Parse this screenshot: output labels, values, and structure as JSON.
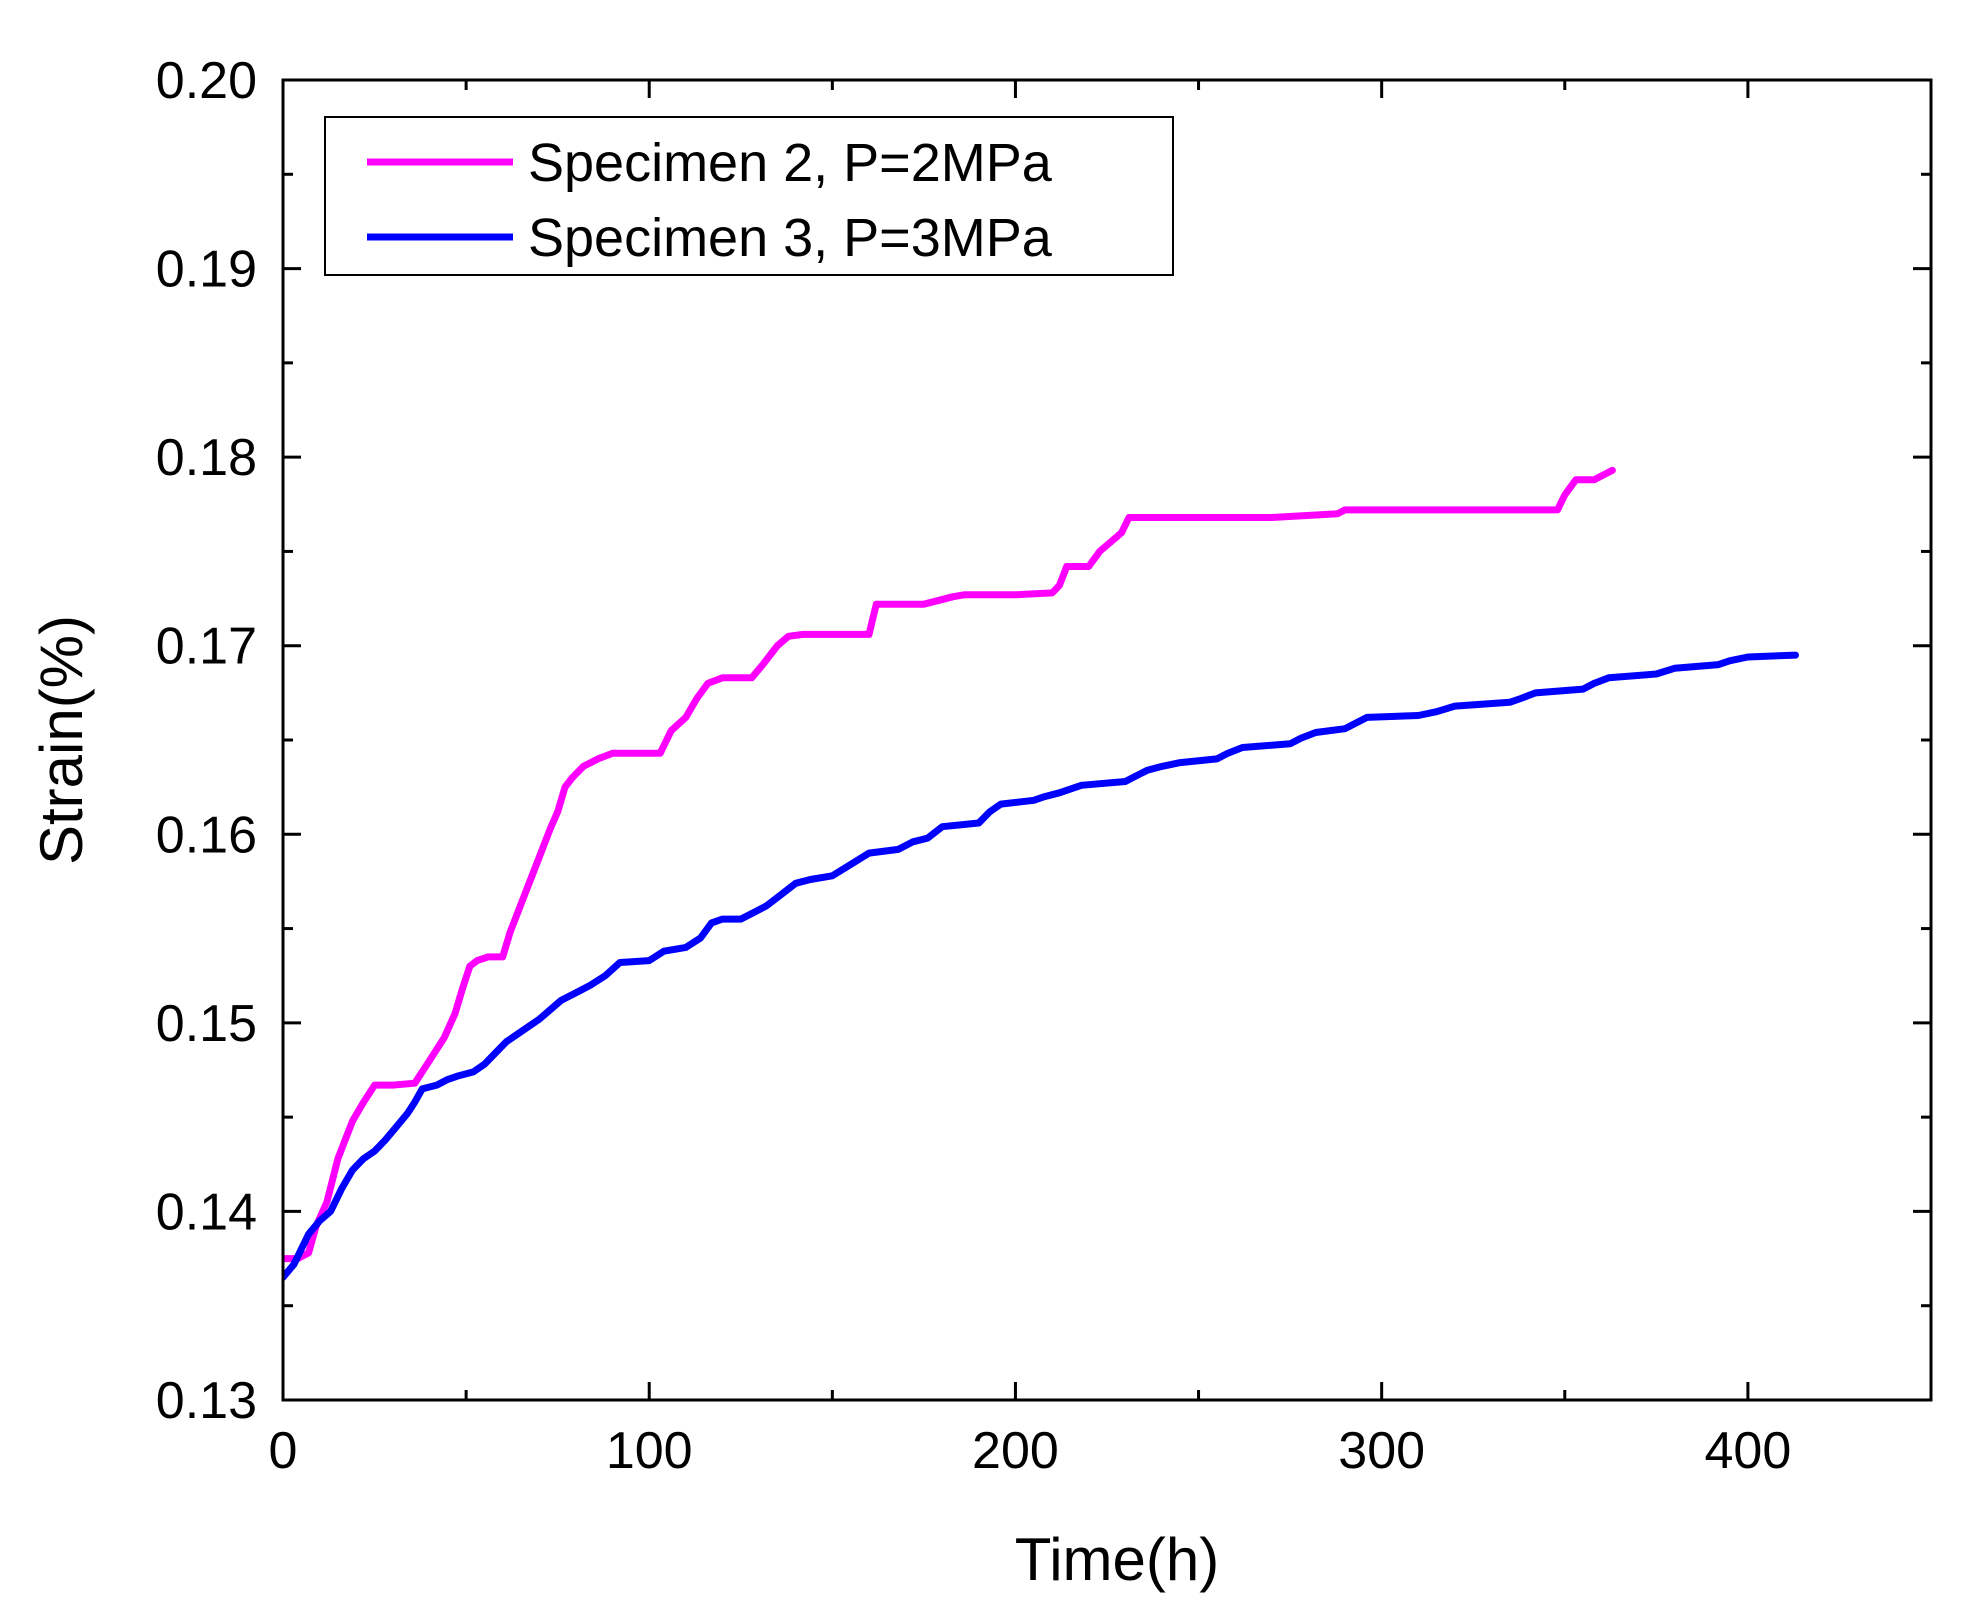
{
  "chart_data": {
    "type": "line",
    "title": "",
    "xlabel": "Time(h)",
    "ylabel": "Strain(%)",
    "xlim": [
      0,
      450
    ],
    "ylim": [
      0.13,
      0.2
    ],
    "x_ticks": [
      0,
      100,
      200,
      300,
      400
    ],
    "x_tick_labels": [
      "0",
      "100",
      "200",
      "300",
      "400"
    ],
    "x_minor_ticks": [
      50,
      150,
      250,
      350
    ],
    "y_ticks": [
      0.13,
      0.14,
      0.15,
      0.16,
      0.17,
      0.18,
      0.19,
      0.2
    ],
    "y_tick_labels": [
      "0.13",
      "0.14",
      "0.15",
      "0.16",
      "0.17",
      "0.18",
      "0.19",
      "0.20"
    ],
    "y_minor_ticks": [
      0.135,
      0.145,
      0.155,
      0.165,
      0.175,
      0.185,
      0.195
    ],
    "grid": false,
    "legend_position": "top-left",
    "series": [
      {
        "name": "Specimen 2, P=2MPa",
        "color": "#ff00ff",
        "x": [
          0,
          4,
          7,
          9,
          12,
          15,
          19,
          22,
          25,
          30,
          36,
          40,
          44,
          47,
          49,
          51,
          53,
          56,
          60,
          62,
          65,
          68,
          71,
          73,
          75,
          77,
          79,
          82,
          86,
          90,
          95,
          103,
          106,
          110,
          113,
          116,
          120,
          128,
          131,
          135,
          138,
          142,
          150,
          160,
          162,
          164,
          167,
          175,
          183,
          186,
          190,
          200,
          210,
          212,
          214,
          216,
          220,
          223,
          226,
          229,
          231,
          235,
          250,
          270,
          288,
          290,
          292,
          310,
          330,
          348,
          350,
          353,
          358,
          360,
          363
        ],
        "y": [
          0.1375,
          0.1375,
          0.1378,
          0.1392,
          0.1405,
          0.1428,
          0.1448,
          0.1458,
          0.1467,
          0.1467,
          0.1468,
          0.148,
          0.1492,
          0.1505,
          0.1518,
          0.153,
          0.1533,
          0.1535,
          0.1535,
          0.1548,
          0.1563,
          0.1578,
          0.1593,
          0.1603,
          0.1612,
          0.1625,
          0.163,
          0.1636,
          0.164,
          0.1643,
          0.1643,
          0.1643,
          0.1655,
          0.1662,
          0.1672,
          0.168,
          0.1683,
          0.1683,
          0.169,
          0.17,
          0.1705,
          0.1706,
          0.1706,
          0.1706,
          0.1722,
          0.1722,
          0.1722,
          0.1722,
          0.1726,
          0.1727,
          0.1727,
          0.1727,
          0.1728,
          0.1732,
          0.1742,
          0.1742,
          0.1742,
          0.175,
          0.1755,
          0.176,
          0.1768,
          0.1768,
          0.1768,
          0.1768,
          0.177,
          0.1772,
          0.1772,
          0.1772,
          0.1772,
          0.1772,
          0.178,
          0.1788,
          0.1788,
          0.179,
          0.1793
        ]
      },
      {
        "name": "Specimen 3, P=3MPa",
        "color": "#0000ff",
        "x": [
          0,
          3,
          5,
          7,
          10,
          13,
          16,
          19,
          22,
          25,
          28,
          31,
          34,
          36,
          38,
          42,
          45,
          48,
          52,
          55,
          58,
          61,
          64,
          67,
          70,
          73,
          76,
          80,
          84,
          88,
          92,
          100,
          104,
          110,
          114,
          117,
          120,
          125,
          128,
          132,
          136,
          140,
          144,
          150,
          155,
          160,
          168,
          172,
          176,
          180,
          190,
          193,
          196,
          205,
          208,
          212,
          218,
          230,
          233,
          236,
          240,
          245,
          255,
          258,
          262,
          275,
          278,
          282,
          290,
          293,
          296,
          310,
          315,
          320,
          335,
          338,
          342,
          355,
          358,
          362,
          375,
          380,
          392,
          395,
          400,
          413
        ],
        "y": [
          0.1365,
          0.1372,
          0.138,
          0.1388,
          0.1395,
          0.14,
          0.1412,
          0.1422,
          0.1428,
          0.1432,
          0.1438,
          0.1445,
          0.1452,
          0.1458,
          0.1465,
          0.1467,
          0.147,
          0.1472,
          0.1474,
          0.1478,
          0.1484,
          0.149,
          0.1494,
          0.1498,
          0.1502,
          0.1507,
          0.1512,
          0.1516,
          0.152,
          0.1525,
          0.1532,
          0.1533,
          0.1538,
          0.154,
          0.1545,
          0.1553,
          0.1555,
          0.1555,
          0.1558,
          0.1562,
          0.1568,
          0.1574,
          0.1576,
          0.1578,
          0.1584,
          0.159,
          0.1592,
          0.1596,
          0.1598,
          0.1604,
          0.1606,
          0.1612,
          0.1616,
          0.1618,
          0.162,
          0.1622,
          0.1626,
          0.1628,
          0.1631,
          0.1634,
          0.1636,
          0.1638,
          0.164,
          0.1643,
          0.1646,
          0.1648,
          0.1651,
          0.1654,
          0.1656,
          0.1659,
          0.1662,
          0.1663,
          0.1665,
          0.1668,
          0.167,
          0.1672,
          0.1675,
          0.1677,
          0.168,
          0.1683,
          0.1685,
          0.1688,
          0.169,
          0.1692,
          0.1694,
          0.1695
        ]
      }
    ]
  }
}
